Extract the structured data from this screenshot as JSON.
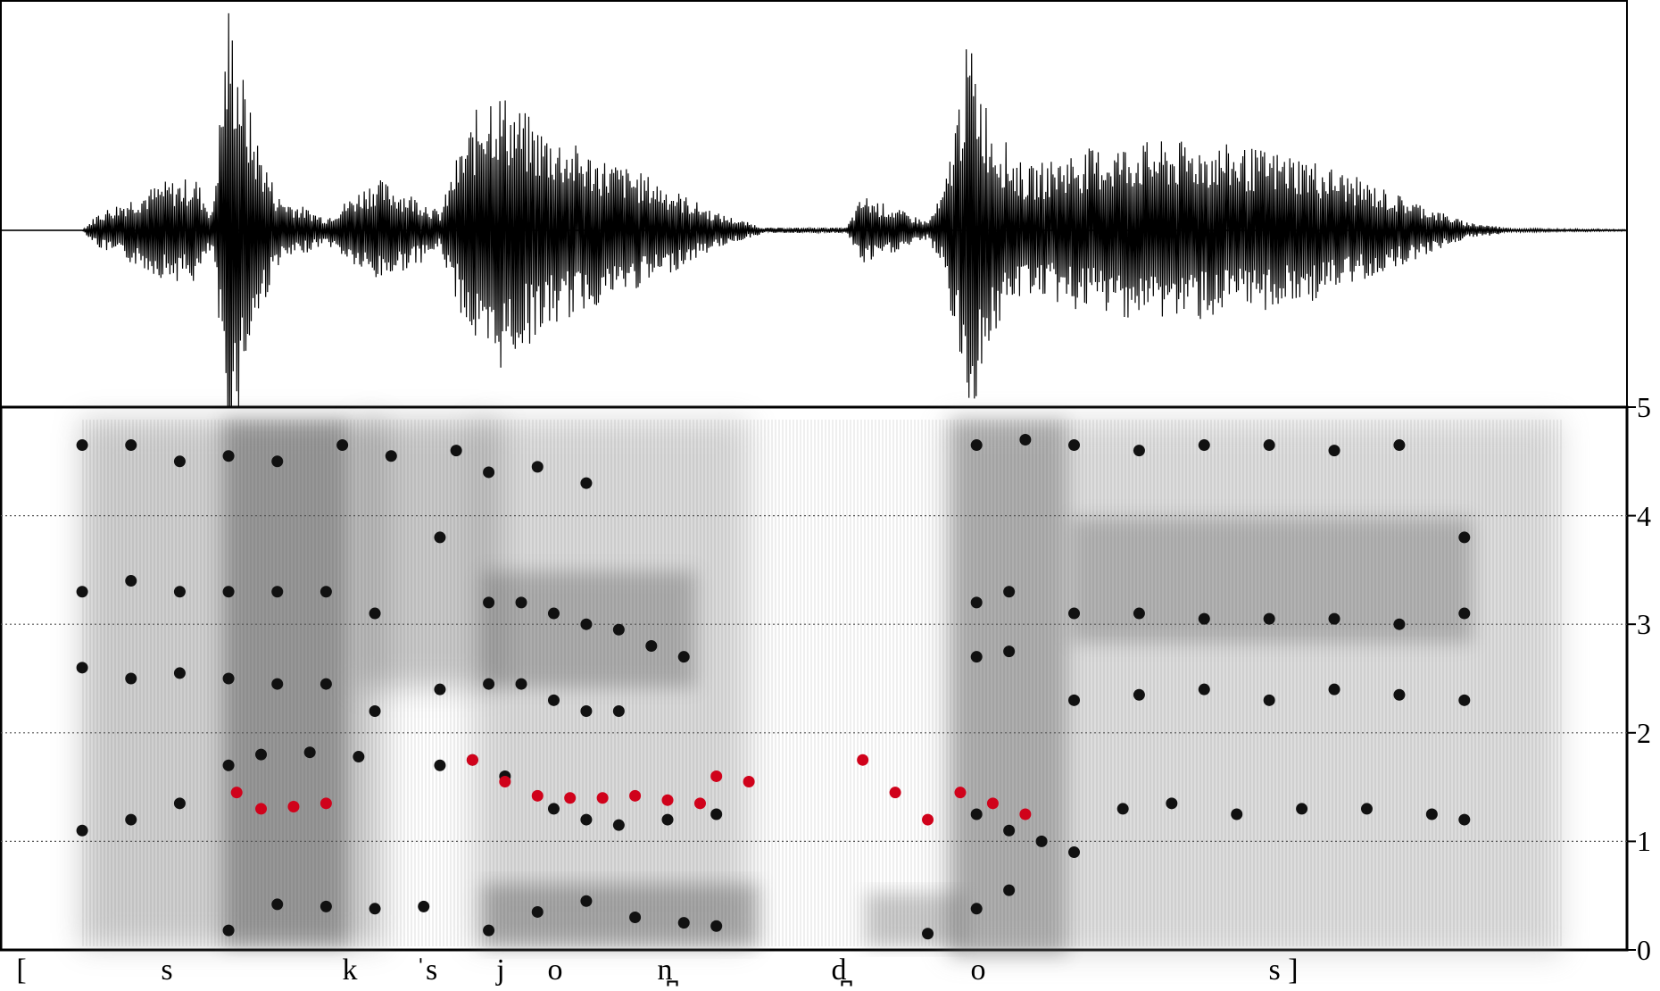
{
  "spectrogram": {
    "y_axis": {
      "min": 0,
      "max": 5,
      "ticks": [
        "0",
        "1",
        "2",
        "3",
        "4",
        "5"
      ],
      "dotted_grid_at": [
        1,
        2,
        3,
        4
      ]
    }
  },
  "transcription": {
    "segments": [
      "[",
      "s",
      "k",
      "ˈs",
      "j",
      "o",
      "n̪",
      "d̪",
      "o",
      "s ]"
    ]
  },
  "colors": {
    "formant": "#111111",
    "f0": "#d0021b",
    "spectrogram_ink": "#1a1a1a",
    "axis": "#000000"
  },
  "chart_data": {
    "type": "scatter",
    "description_free": true,
    "x_unit": "relative time (0-1)",
    "y_unit": "axis ticks 0-5",
    "ylim": [
      0,
      5
    ],
    "series": [
      {
        "name": "",
        "color": "#111111",
        "points_F1": [
          [
            0.14,
            0.18
          ],
          [
            0.17,
            0.42
          ],
          [
            0.2,
            0.4
          ],
          [
            0.23,
            0.38
          ],
          [
            0.26,
            0.4
          ],
          [
            0.3,
            0.18
          ],
          [
            0.33,
            0.35
          ],
          [
            0.36,
            0.45
          ],
          [
            0.39,
            0.3
          ],
          [
            0.42,
            0.25
          ],
          [
            0.44,
            0.22
          ],
          [
            0.57,
            0.15
          ],
          [
            0.6,
            0.38
          ],
          [
            0.62,
            0.55
          ]
        ],
        "points_F2": [
          [
            0.05,
            1.1
          ],
          [
            0.08,
            1.2
          ],
          [
            0.11,
            1.35
          ],
          [
            0.14,
            1.7
          ],
          [
            0.16,
            1.8
          ],
          [
            0.19,
            1.82
          ],
          [
            0.22,
            1.78
          ],
          [
            0.27,
            1.7
          ],
          [
            0.29,
            1.75
          ],
          [
            0.31,
            1.6
          ],
          [
            0.34,
            1.3
          ],
          [
            0.36,
            1.2
          ],
          [
            0.38,
            1.15
          ],
          [
            0.41,
            1.2
          ],
          [
            0.44,
            1.25
          ],
          [
            0.6,
            1.25
          ],
          [
            0.62,
            1.1
          ],
          [
            0.64,
            1.0
          ],
          [
            0.66,
            0.9
          ],
          [
            0.69,
            1.3
          ],
          [
            0.72,
            1.35
          ],
          [
            0.76,
            1.25
          ],
          [
            0.8,
            1.3
          ],
          [
            0.84,
            1.3
          ],
          [
            0.88,
            1.25
          ],
          [
            0.9,
            1.2
          ]
        ],
        "points_F3": [
          [
            0.05,
            2.6
          ],
          [
            0.08,
            2.5
          ],
          [
            0.11,
            2.55
          ],
          [
            0.14,
            2.5
          ],
          [
            0.17,
            2.45
          ],
          [
            0.2,
            2.45
          ],
          [
            0.23,
            2.2
          ],
          [
            0.27,
            2.4
          ],
          [
            0.3,
            3.2
          ],
          [
            0.32,
            3.2
          ],
          [
            0.34,
            3.1
          ],
          [
            0.36,
            3.0
          ],
          [
            0.38,
            2.95
          ],
          [
            0.4,
            2.8
          ],
          [
            0.42,
            2.7
          ],
          [
            0.6,
            2.7
          ],
          [
            0.62,
            2.75
          ],
          [
            0.66,
            2.3
          ],
          [
            0.7,
            2.35
          ],
          [
            0.74,
            2.4
          ],
          [
            0.78,
            2.3
          ],
          [
            0.82,
            2.4
          ],
          [
            0.86,
            2.35
          ],
          [
            0.9,
            2.3
          ]
        ],
        "points_F4": [
          [
            0.05,
            3.3
          ],
          [
            0.08,
            3.4
          ],
          [
            0.11,
            3.3
          ],
          [
            0.14,
            3.3
          ],
          [
            0.17,
            3.3
          ],
          [
            0.2,
            3.3
          ],
          [
            0.23,
            3.1
          ],
          [
            0.27,
            3.8
          ],
          [
            0.3,
            2.45
          ],
          [
            0.32,
            2.45
          ],
          [
            0.34,
            2.3
          ],
          [
            0.36,
            2.2
          ],
          [
            0.38,
            2.2
          ],
          [
            0.6,
            3.2
          ],
          [
            0.62,
            3.3
          ],
          [
            0.66,
            3.1
          ],
          [
            0.7,
            3.1
          ],
          [
            0.74,
            3.05
          ],
          [
            0.78,
            3.05
          ],
          [
            0.82,
            3.05
          ],
          [
            0.86,
            3.0
          ],
          [
            0.9,
            3.1
          ]
        ],
        "points_F5": [
          [
            0.05,
            4.65
          ],
          [
            0.08,
            4.65
          ],
          [
            0.11,
            4.5
          ],
          [
            0.14,
            4.55
          ],
          [
            0.17,
            4.5
          ],
          [
            0.21,
            4.65
          ],
          [
            0.24,
            4.55
          ],
          [
            0.28,
            4.6
          ],
          [
            0.3,
            4.4
          ],
          [
            0.33,
            4.45
          ],
          [
            0.36,
            4.3
          ],
          [
            0.6,
            4.65
          ],
          [
            0.63,
            4.7
          ],
          [
            0.66,
            4.65
          ],
          [
            0.7,
            4.6
          ],
          [
            0.74,
            4.65
          ],
          [
            0.78,
            4.65
          ],
          [
            0.82,
            4.6
          ],
          [
            0.86,
            4.65
          ],
          [
            0.9,
            3.8
          ]
        ]
      },
      {
        "name": "",
        "color": "#d0021b",
        "points_f0": [
          [
            0.145,
            1.45
          ],
          [
            0.16,
            1.3
          ],
          [
            0.18,
            1.32
          ],
          [
            0.2,
            1.35
          ],
          [
            0.29,
            1.75
          ],
          [
            0.31,
            1.55
          ],
          [
            0.33,
            1.42
          ],
          [
            0.35,
            1.4
          ],
          [
            0.37,
            1.4
          ],
          [
            0.39,
            1.42
          ],
          [
            0.41,
            1.38
          ],
          [
            0.43,
            1.35
          ],
          [
            0.44,
            1.6
          ],
          [
            0.46,
            1.55
          ],
          [
            0.53,
            1.75
          ],
          [
            0.55,
            1.45
          ],
          [
            0.57,
            1.2
          ],
          [
            0.59,
            1.45
          ],
          [
            0.61,
            1.35
          ],
          [
            0.63,
            1.25
          ]
        ]
      }
    ]
  }
}
